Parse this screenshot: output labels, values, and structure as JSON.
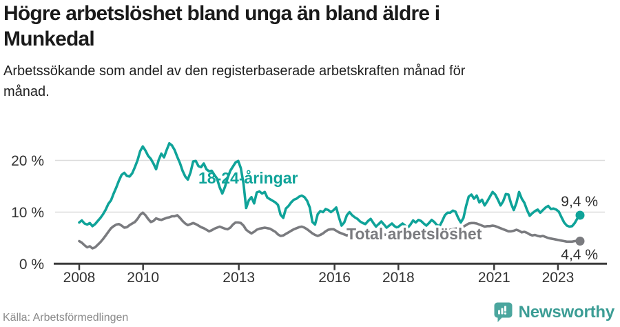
{
  "header": {
    "title": "Högre arbetslöshet bland unga än bland äldre i\nMunkedal",
    "subtitle": "Arbetssökande som andel av den registerbaserade arbetskraften månad för\nmånad."
  },
  "footer": {
    "source": "Källa: Arbetsförmedlingen",
    "brand": "Newsworthy"
  },
  "colors": {
    "youth_line": "#0FA399",
    "total_line": "#7A7B7F",
    "gridline": "#dcdcdc",
    "axis": "#3b3b3b",
    "tick_text": "#333333",
    "end_label_text": "#2e2e2e",
    "brand_teal": "#4BA69E",
    "brand_text": "#3C9D95"
  },
  "chart_data": {
    "type": "line",
    "title": "Högre arbetslöshet bland unga än bland äldre i Munkedal",
    "subtitle": "Arbetssökande som andel av den registerbaserade arbetskraften månad för månad.",
    "x": {
      "start_year": 2008,
      "interval": "monthly",
      "tick_years": [
        2008,
        2010,
        2013,
        2016,
        2018,
        2021,
        2023
      ]
    },
    "x_tick_labels": [
      "2008",
      "2010",
      "2013",
      "2016",
      "2018",
      "2021",
      "2023"
    ],
    "y": {
      "ticks": [
        0,
        10,
        20
      ],
      "min": 0,
      "max": 25
    },
    "y_tick_labels": [
      "0 %",
      "10 %",
      "20 %"
    ],
    "grid": "horizontal-only",
    "legend_position": "inline-annotations",
    "series": [
      {
        "name": "18-24-åringar",
        "color": "#0FA399",
        "end_label": "9,4 %",
        "last_value": 9.4,
        "values": [
          8.0,
          8.4,
          7.8,
          7.6,
          7.9,
          7.3,
          7.7,
          8.3,
          8.9,
          9.6,
          10.5,
          11.6,
          12.3,
          13.6,
          14.8,
          16.1,
          17.2,
          17.6,
          17.0,
          16.9,
          17.5,
          18.7,
          20.0,
          21.8,
          22.7,
          21.9,
          20.9,
          20.3,
          19.4,
          18.3,
          20.1,
          21.3,
          20.6,
          22.0,
          23.3,
          22.9,
          22.0,
          20.7,
          19.5,
          18.0,
          16.9,
          16.3,
          17.7,
          19.8,
          19.9,
          18.9,
          18.7,
          19.4,
          18.3,
          17.9,
          18.0,
          17.2,
          16.5,
          14.8,
          13.6,
          14.9,
          16.6,
          18.0,
          18.8,
          19.6,
          19.9,
          18.5,
          15.5,
          10.8,
          12.3,
          12.9,
          11.7,
          13.8,
          14.0,
          13.6,
          13.9,
          12.8,
          12.5,
          12.2,
          11.9,
          11.4,
          9.5,
          8.9,
          10.7,
          11.2,
          11.9,
          12.4,
          12.6,
          13.0,
          13.2,
          12.9,
          12.2,
          10.9,
          8.1,
          7.6,
          9.6,
          10.2,
          10.0,
          10.6,
          10.4,
          10.0,
          10.4,
          10.9,
          9.0,
          7.4,
          8.0,
          9.4,
          10.0,
          9.4,
          9.0,
          8.7,
          8.2,
          7.9,
          7.7,
          8.3,
          8.7,
          7.9,
          7.2,
          7.7,
          8.2,
          7.6,
          7.0,
          7.4,
          7.8,
          7.3,
          7.0,
          7.4,
          7.8,
          7.4,
          7.0,
          7.6,
          8.4,
          8.0,
          8.5,
          8.3,
          7.8,
          7.4,
          7.9,
          8.5,
          8.1,
          7.5,
          7.3,
          8.3,
          9.4,
          9.9,
          9.9,
          10.3,
          10.1,
          8.9,
          8.0,
          8.9,
          11.2,
          13.0,
          13.4,
          12.6,
          13.2,
          11.9,
          12.4,
          11.3,
          12.1,
          13.0,
          13.9,
          13.4,
          12.4,
          11.3,
          12.1,
          13.5,
          13.4,
          11.6,
          10.4,
          11.8,
          13.9,
          12.6,
          11.8,
          10.4,
          9.3,
          9.8,
          10.2,
          10.5,
          9.9,
          10.4,
          10.9,
          11.2,
          10.6,
          10.7,
          10.5,
          10.1,
          9.0,
          8.0,
          7.4,
          7.2,
          7.3,
          7.9,
          8.8,
          9.4
        ]
      },
      {
        "name": "Total arbetslöshet",
        "color": "#7A7B7F",
        "end_label": "4,4 %",
        "last_value": 4.4,
        "values": [
          4.4,
          4.1,
          3.6,
          3.2,
          3.4,
          3.0,
          3.2,
          3.7,
          4.2,
          4.8,
          5.5,
          6.2,
          6.9,
          7.3,
          7.6,
          7.7,
          7.4,
          7.0,
          7.1,
          7.5,
          7.8,
          8.1,
          8.7,
          9.5,
          9.9,
          9.4,
          8.7,
          8.1,
          8.3,
          8.8,
          8.6,
          8.5,
          8.7,
          8.9,
          9.0,
          9.2,
          9.2,
          9.4,
          8.9,
          8.3,
          7.8,
          7.5,
          7.7,
          7.9,
          7.7,
          7.4,
          7.1,
          6.9,
          6.6,
          6.3,
          6.5,
          6.8,
          7.0,
          7.2,
          7.0,
          6.8,
          6.7,
          7.0,
          7.6,
          8.0,
          8.0,
          7.9,
          7.4,
          6.6,
          6.2,
          5.9,
          6.2,
          6.6,
          6.8,
          6.9,
          7.0,
          6.9,
          6.8,
          6.5,
          6.2,
          5.7,
          5.4,
          5.5,
          5.8,
          6.1,
          6.4,
          6.7,
          6.9,
          7.1,
          7.2,
          7.0,
          6.7,
          6.3,
          5.9,
          5.6,
          5.4,
          5.6,
          5.9,
          6.3,
          6.6,
          6.7,
          6.7,
          6.4,
          6.1,
          5.9,
          5.7,
          5.5,
          5.7,
          5.9,
          5.8,
          5.9,
          6.0,
          6.1,
          6.2,
          6.0,
          5.8,
          5.6,
          5.4,
          5.3,
          5.5,
          5.7,
          5.6,
          5.7,
          5.8,
          5.9,
          5.9,
          5.7,
          5.5,
          5.3,
          5.1,
          5.0,
          5.2,
          5.4,
          5.3,
          5.4,
          5.5,
          5.6,
          5.7,
          5.8,
          5.9,
          6.0,
          6.1,
          6.2,
          6.4,
          6.5,
          6.6,
          6.7,
          6.8,
          6.9,
          7.0,
          7.2,
          7.5,
          7.8,
          7.9,
          7.9,
          7.8,
          7.6,
          7.4,
          7.2,
          7.3,
          7.3,
          7.4,
          7.3,
          7.1,
          6.9,
          6.7,
          6.5,
          6.3,
          6.3,
          6.4,
          6.6,
          6.4,
          6.1,
          6.2,
          6.0,
          5.7,
          5.5,
          5.6,
          5.4,
          5.3,
          5.4,
          5.2,
          5.0,
          4.9,
          4.8,
          4.7,
          4.6,
          4.5,
          4.4,
          4.3,
          4.3,
          4.3,
          4.4,
          4.5,
          4.4
        ]
      }
    ]
  }
}
